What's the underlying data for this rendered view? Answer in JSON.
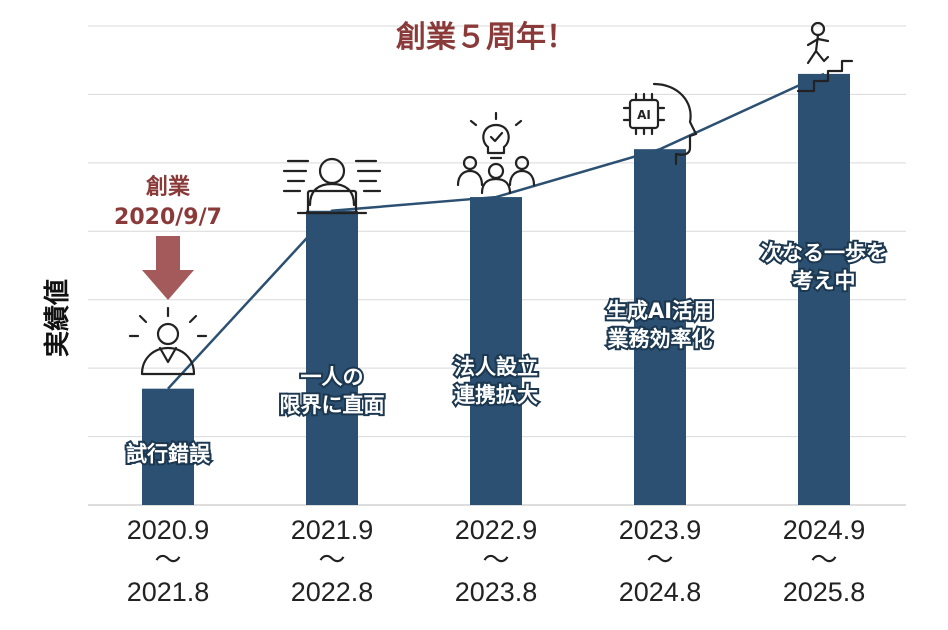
{
  "colors": {
    "bar": "#2b5072",
    "line": "#2b5072",
    "accent": "#8b3a3a",
    "grid": "#d9d9d9",
    "text": "#111111"
  },
  "annotation": {
    "label": "創業",
    "date": "2020/9/7"
  },
  "icons": [
    "leader-person-icon",
    "person-at-laptop-icon",
    "team-idea-icon",
    "ai-head-icon",
    "person-climbing-stairs-icon"
  ],
  "chart_data": {
    "type": "bar",
    "title": "創業５周年！",
    "ylabel": "実績値",
    "xlabel": "",
    "grid": true,
    "ylim": [
      0,
      70
    ],
    "categories": [
      [
        "2020.9",
        "～",
        "2021.8"
      ],
      [
        "2021.9",
        "～",
        "2022.8"
      ],
      [
        "2022.9",
        "～",
        "2023.8"
      ],
      [
        "2023.9",
        "～",
        "2024.8"
      ],
      [
        "2024.9",
        "～",
        "2025.8"
      ]
    ],
    "values": [
      17,
      43,
      45,
      52,
      63
    ],
    "line_values": [
      17,
      43,
      45,
      52,
      63
    ],
    "bar_labels": [
      [
        "試行錯誤"
      ],
      [
        "一人の",
        "限界に直面"
      ],
      [
        "法人設立",
        "連携拡大"
      ],
      [
        "生成AI活用",
        "業務効率化"
      ],
      [
        "次なる一歩を",
        "考え中"
      ]
    ]
  }
}
